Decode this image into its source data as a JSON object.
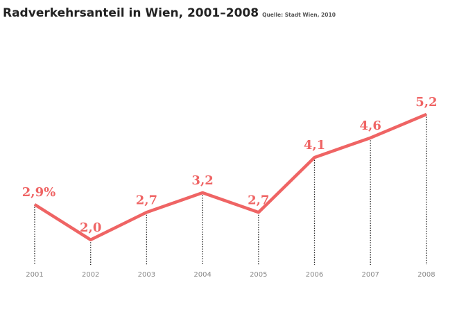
{
  "chart_data": {
    "type": "line",
    "title": "Radverkehrsanteil in Wien, 2001–2008",
    "source": "Quelle: Stadt Wien, 2010",
    "categories": [
      "2001",
      "2002",
      "2003",
      "2004",
      "2005",
      "2006",
      "2007",
      "2008"
    ],
    "values": [
      2.9,
      2.0,
      2.7,
      3.2,
      2.7,
      4.1,
      4.6,
      5.2
    ],
    "value_labels": [
      "2,9%",
      "2,0",
      "2,7",
      "3,2",
      "2,7",
      "4,1",
      "4,6",
      "5,2"
    ],
    "color": "#ef6464"
  }
}
